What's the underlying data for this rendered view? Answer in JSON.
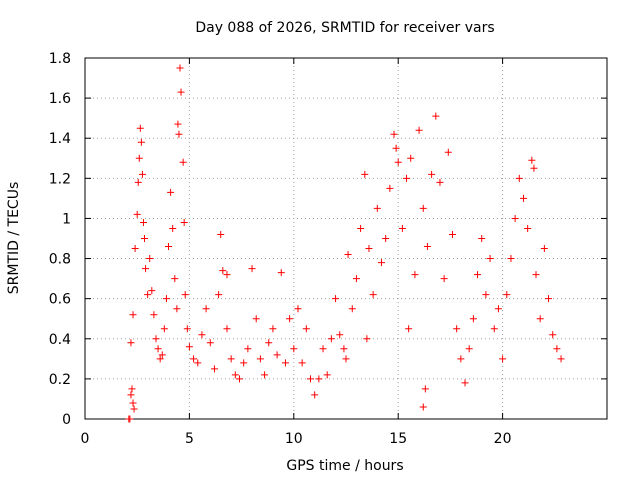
{
  "chart_data": {
    "type": "scatter",
    "title": "Day 088 of 2026, SRMTID for receiver vars",
    "xlabel": "GPS time / hours",
    "ylabel": "SRMTID / TECUs",
    "xlim": [
      0,
      25
    ],
    "ylim": [
      0,
      1.8
    ],
    "x_ticks": [
      0,
      5,
      10,
      15,
      20
    ],
    "x_tick_labels": [
      "0",
      "5",
      "10",
      "15",
      "20"
    ],
    "y_ticks": [
      0,
      0.2,
      0.4,
      0.6,
      0.8,
      1.0,
      1.2,
      1.4,
      1.6,
      1.8
    ],
    "y_tick_labels": [
      "0",
      "0.2",
      "0.4",
      "0.6",
      "0.8",
      "1",
      "1.2",
      "1.4",
      "1.6",
      "1.8"
    ],
    "grid": true,
    "marker": "+",
    "color": "#ff0000",
    "series": [
      {
        "name": "SRMTID",
        "points": [
          [
            2.1,
            0.0
          ],
          [
            2.15,
            0.0
          ],
          [
            2.2,
            0.12
          ],
          [
            2.25,
            0.15
          ],
          [
            2.3,
            0.08
          ],
          [
            2.35,
            0.05
          ],
          [
            2.2,
            0.38
          ],
          [
            2.3,
            0.52
          ],
          [
            2.4,
            0.85
          ],
          [
            2.5,
            1.02
          ],
          [
            2.55,
            1.18
          ],
          [
            2.6,
            1.3
          ],
          [
            2.65,
            1.45
          ],
          [
            2.7,
            1.38
          ],
          [
            2.75,
            1.22
          ],
          [
            2.8,
            0.98
          ],
          [
            2.85,
            0.9
          ],
          [
            2.9,
            0.75
          ],
          [
            3.0,
            0.62
          ],
          [
            3.1,
            0.8
          ],
          [
            3.2,
            0.64
          ],
          [
            3.3,
            0.52
          ],
          [
            3.4,
            0.4
          ],
          [
            3.5,
            0.35
          ],
          [
            3.6,
            0.3
          ],
          [
            3.7,
            0.32
          ],
          [
            3.8,
            0.45
          ],
          [
            3.9,
            0.6
          ],
          [
            4.0,
            0.86
          ],
          [
            4.1,
            1.13
          ],
          [
            4.2,
            0.95
          ],
          [
            4.3,
            0.7
          ],
          [
            4.4,
            0.55
          ],
          [
            4.45,
            1.47
          ],
          [
            4.5,
            1.42
          ],
          [
            4.55,
            1.75
          ],
          [
            4.6,
            1.63
          ],
          [
            4.7,
            1.28
          ],
          [
            4.75,
            0.98
          ],
          [
            4.8,
            0.62
          ],
          [
            4.9,
            0.45
          ],
          [
            5.0,
            0.36
          ],
          [
            5.2,
            0.3
          ],
          [
            5.4,
            0.28
          ],
          [
            5.6,
            0.42
          ],
          [
            5.8,
            0.55
          ],
          [
            6.0,
            0.38
          ],
          [
            6.2,
            0.25
          ],
          [
            6.4,
            0.62
          ],
          [
            6.5,
            0.92
          ],
          [
            6.6,
            0.74
          ],
          [
            6.8,
            0.45
          ],
          [
            7.0,
            0.3
          ],
          [
            7.2,
            0.22
          ],
          [
            7.4,
            0.2
          ],
          [
            7.6,
            0.28
          ],
          [
            7.8,
            0.35
          ],
          [
            8.0,
            0.75
          ],
          [
            8.2,
            0.5
          ],
          [
            8.4,
            0.3
          ],
          [
            8.6,
            0.22
          ],
          [
            8.8,
            0.38
          ],
          [
            9.0,
            0.45
          ],
          [
            9.2,
            0.32
          ],
          [
            9.4,
            0.73
          ],
          [
            9.6,
            0.28
          ],
          [
            9.8,
            0.5
          ],
          [
            10.0,
            0.35
          ],
          [
            10.2,
            0.55
          ],
          [
            10.4,
            0.28
          ],
          [
            10.6,
            0.45
          ],
          [
            10.8,
            0.2
          ],
          [
            11.0,
            0.12
          ],
          [
            11.2,
            0.2
          ],
          [
            11.4,
            0.35
          ],
          [
            11.6,
            0.22
          ],
          [
            11.8,
            0.4
          ],
          [
            12.0,
            0.6
          ],
          [
            12.2,
            0.42
          ],
          [
            12.4,
            0.35
          ],
          [
            12.6,
            0.82
          ],
          [
            12.8,
            0.55
          ],
          [
            13.0,
            0.7
          ],
          [
            13.2,
            0.95
          ],
          [
            13.4,
            1.22
          ],
          [
            13.6,
            0.85
          ],
          [
            13.8,
            0.62
          ],
          [
            14.0,
            1.05
          ],
          [
            14.2,
            0.78
          ],
          [
            14.4,
            0.9
          ],
          [
            14.6,
            1.15
          ],
          [
            14.8,
            1.42
          ],
          [
            14.9,
            1.35
          ],
          [
            15.0,
            1.28
          ],
          [
            15.2,
            0.95
          ],
          [
            15.4,
            1.2
          ],
          [
            15.6,
            1.3
          ],
          [
            15.8,
            0.72
          ],
          [
            16.0,
            1.44
          ],
          [
            16.2,
            1.05
          ],
          [
            16.4,
            0.86
          ],
          [
            16.6,
            1.22
          ],
          [
            16.8,
            1.51
          ],
          [
            17.0,
            1.18
          ],
          [
            17.2,
            0.7
          ],
          [
            17.4,
            1.33
          ],
          [
            17.6,
            0.92
          ],
          [
            17.8,
            0.45
          ],
          [
            18.0,
            0.3
          ],
          [
            18.2,
            0.18
          ],
          [
            18.4,
            0.35
          ],
          [
            18.6,
            0.5
          ],
          [
            18.8,
            0.72
          ],
          [
            19.0,
            0.9
          ],
          [
            19.2,
            0.62
          ],
          [
            19.4,
            0.8
          ],
          [
            19.6,
            0.45
          ],
          [
            19.8,
            0.55
          ],
          [
            20.0,
            0.3
          ],
          [
            20.2,
            0.62
          ],
          [
            20.4,
            0.8
          ],
          [
            20.6,
            1.0
          ],
          [
            20.8,
            1.2
          ],
          [
            21.0,
            1.1
          ],
          [
            21.2,
            0.95
          ],
          [
            21.4,
            1.29
          ],
          [
            21.5,
            1.25
          ],
          [
            21.6,
            0.72
          ],
          [
            21.8,
            0.5
          ],
          [
            22.0,
            0.85
          ],
          [
            22.2,
            0.6
          ],
          [
            22.4,
            0.42
          ],
          [
            22.6,
            0.35
          ],
          [
            22.8,
            0.3
          ],
          [
            16.2,
            0.06
          ],
          [
            16.3,
            0.15
          ],
          [
            15.5,
            0.45
          ],
          [
            13.5,
            0.4
          ],
          [
            12.5,
            0.3
          ],
          [
            6.8,
            0.72
          ]
        ]
      }
    ]
  }
}
